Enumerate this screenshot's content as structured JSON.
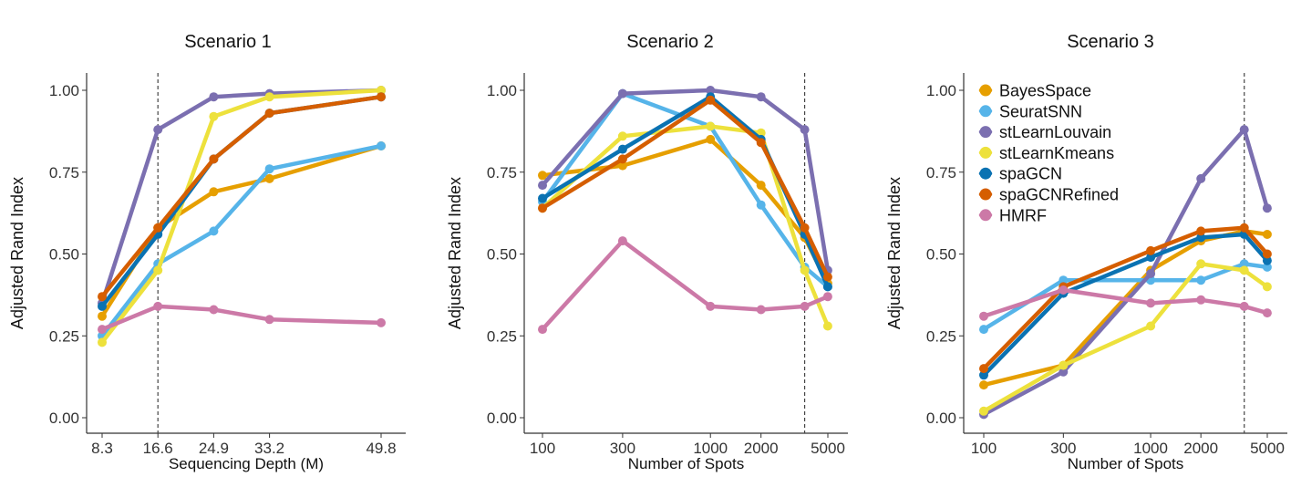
{
  "chart_data": [
    {
      "type": "line",
      "title": "Scenario 1",
      "xlabel": "Sequencing Depth (M)",
      "ylabel": "Adjusted Rand Index",
      "x_scale": "linear",
      "xlim": [
        8.3,
        49.8
      ],
      "x": [
        8.3,
        16.6,
        24.9,
        33.2,
        49.8
      ],
      "x_ticks": [
        8.3,
        16.6,
        24.9,
        33.2,
        49.8
      ],
      "x_tick_labels": [
        "8.3",
        "16.6",
        "24.9",
        "33.2",
        "49.8"
      ],
      "ylim": [
        0,
        1
      ],
      "y_ticks": [
        0,
        0.25,
        0.5,
        0.75,
        1.0
      ],
      "y_tick_labels": [
        "0.00",
        "0.25",
        "0.50",
        "0.75",
        "1.00"
      ],
      "vline_x": 16.6,
      "grid": false,
      "series": [
        {
          "name": "BayesSpace",
          "color": "#E69F00",
          "values": [
            0.31,
            0.58,
            0.69,
            0.73,
            0.83
          ]
        },
        {
          "name": "SeuratSNN",
          "color": "#56B4E9",
          "values": [
            0.25,
            0.47,
            0.57,
            0.76,
            0.83
          ]
        },
        {
          "name": "stLearnLouvain",
          "color": "#7B6FB0",
          "values": [
            0.35,
            0.88,
            0.98,
            0.99,
            1.0
          ]
        },
        {
          "name": "stLearnKmeans",
          "color": "#EDE13C",
          "values": [
            0.23,
            0.45,
            0.92,
            0.98,
            1.0
          ]
        },
        {
          "name": "spaGCN",
          "color": "#0A72B2",
          "values": [
            0.34,
            0.56,
            0.79,
            0.93,
            0.98
          ]
        },
        {
          "name": "spaGCNRefined",
          "color": "#D55E00",
          "values": [
            0.37,
            0.58,
            0.79,
            0.93,
            0.98
          ]
        },
        {
          "name": "HMRF",
          "color": "#CC79A7",
          "values": [
            0.27,
            0.34,
            0.33,
            0.3,
            0.29
          ]
        }
      ]
    },
    {
      "type": "line",
      "title": "Scenario 2",
      "xlabel": "Number of Spots",
      "ylabel": "Adjusted Rand Index",
      "x_scale": "log",
      "xlim": [
        100,
        5000
      ],
      "x": [
        100,
        300,
        1000,
        2000,
        3639,
        4992
      ],
      "x_ticks": [
        100,
        300,
        1000,
        2000,
        5000
      ],
      "x_tick_labels": [
        "100",
        "300",
        "1000",
        "2000",
        "5000"
      ],
      "ylim": [
        0,
        1
      ],
      "y_ticks": [
        0,
        0.25,
        0.5,
        0.75,
        1.0
      ],
      "y_tick_labels": [
        "0.00",
        "0.25",
        "0.50",
        "0.75",
        "1.00"
      ],
      "vline_x": 3639,
      "grid": false,
      "series": [
        {
          "name": "BayesSpace",
          "color": "#E69F00",
          "values": [
            0.74,
            0.77,
            0.85,
            0.71,
            0.55,
            0.41
          ]
        },
        {
          "name": "SeuratSNN",
          "color": "#56B4E9",
          "values": [
            0.66,
            0.99,
            0.89,
            0.65,
            0.46,
            0.4
          ]
        },
        {
          "name": "stLearnLouvain",
          "color": "#7B6FB0",
          "values": [
            0.71,
            0.99,
            1.0,
            0.98,
            0.88,
            0.45
          ]
        },
        {
          "name": "stLearnKmeans",
          "color": "#EDE13C",
          "values": [
            0.64,
            0.86,
            0.89,
            0.87,
            0.45,
            0.28
          ]
        },
        {
          "name": "spaGCN",
          "color": "#0A72B2",
          "values": [
            0.67,
            0.82,
            0.98,
            0.85,
            0.56,
            0.4
          ]
        },
        {
          "name": "spaGCNRefined",
          "color": "#D55E00",
          "values": [
            0.64,
            0.79,
            0.97,
            0.84,
            0.58,
            0.43
          ]
        },
        {
          "name": "HMRF",
          "color": "#CC79A7",
          "values": [
            0.27,
            0.54,
            0.34,
            0.33,
            0.34,
            0.37
          ]
        }
      ]
    },
    {
      "type": "line",
      "title": "Scenario 3",
      "xlabel": "Number of Spots",
      "ylabel": "Adjusted Rand Index",
      "x_scale": "log",
      "xlim": [
        100,
        5000
      ],
      "x": [
        100,
        300,
        1000,
        2000,
        3639,
        4992
      ],
      "x_ticks": [
        100,
        300,
        1000,
        2000,
        5000
      ],
      "x_tick_labels": [
        "100",
        "300",
        "1000",
        "2000",
        "5000"
      ],
      "ylim": [
        0,
        1
      ],
      "y_ticks": [
        0,
        0.25,
        0.5,
        0.75,
        1.0
      ],
      "y_tick_labels": [
        "0.00",
        "0.25",
        "0.50",
        "0.75",
        "1.00"
      ],
      "vline_x": 3639,
      "grid": false,
      "legend": "top-left",
      "series": [
        {
          "name": "BayesSpace",
          "color": "#E69F00",
          "values": [
            0.1,
            0.16,
            0.45,
            0.54,
            0.57,
            0.56
          ]
        },
        {
          "name": "SeuratSNN",
          "color": "#56B4E9",
          "values": [
            0.27,
            0.42,
            0.42,
            0.42,
            0.47,
            0.46
          ]
        },
        {
          "name": "stLearnLouvain",
          "color": "#7B6FB0",
          "values": [
            0.01,
            0.14,
            0.44,
            0.73,
            0.88,
            0.64
          ]
        },
        {
          "name": "stLearnKmeans",
          "color": "#EDE13C",
          "values": [
            0.02,
            0.16,
            0.28,
            0.47,
            0.45,
            0.4
          ]
        },
        {
          "name": "spaGCN",
          "color": "#0A72B2",
          "values": [
            0.13,
            0.38,
            0.49,
            0.55,
            0.56,
            0.48
          ]
        },
        {
          "name": "spaGCNRefined",
          "color": "#D55E00",
          "values": [
            0.15,
            0.4,
            0.51,
            0.57,
            0.58,
            0.5
          ]
        },
        {
          "name": "HMRF",
          "color": "#CC79A7",
          "values": [
            0.31,
            0.39,
            0.35,
            0.36,
            0.34,
            0.32
          ]
        }
      ]
    }
  ]
}
